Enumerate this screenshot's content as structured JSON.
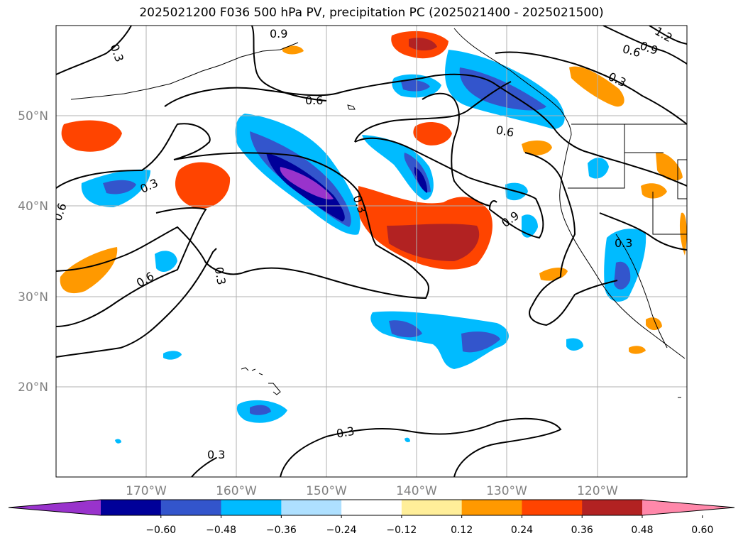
{
  "title": "2025021200 F036 500 hPa PV, precipitation PC (2025021400 - 2025021500)",
  "lon_labels": [
    "170°W",
    "160°W",
    "150°W",
    "140°W",
    "130°W",
    "120°W"
  ],
  "lat_labels": [
    "50°N",
    "40°N",
    "30°N",
    "20°N"
  ],
  "contour_labels": [
    "0.3",
    "0.6",
    "0.9",
    "1.2"
  ],
  "colorbar": {
    "colors": [
      "#9933cc",
      "#000099",
      "#3355cc",
      "#00bbff",
      "#aee0ff",
      "#ffffff",
      "#ffee99",
      "#ff9900",
      "#ff4400",
      "#b22222",
      "#ff88aa"
    ],
    "ticks": [
      "−0.60",
      "−0.48",
      "−0.36",
      "−0.24",
      "−0.12",
      "0.12",
      "0.24",
      "0.36",
      "0.48",
      "0.60"
    ]
  },
  "map_data": {
    "extent": {
      "lon": [
        -180,
        -110
      ],
      "lat": [
        10,
        60
      ]
    },
    "variable_contour": "500 hPa PV",
    "variable_shaded": "precipitation PC"
  }
}
